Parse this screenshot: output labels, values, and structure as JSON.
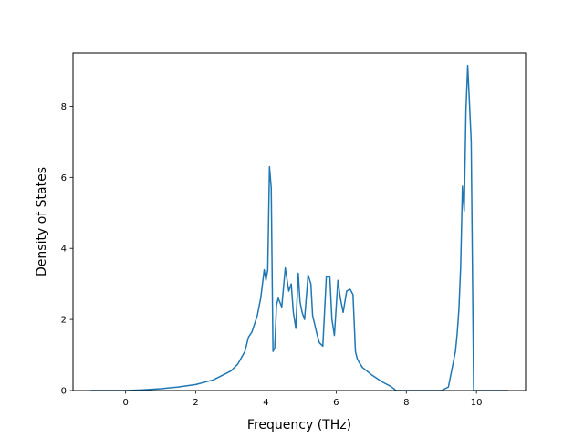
{
  "chart_data": {
    "type": "line",
    "title": "",
    "xlabel": "Frequency (THz)",
    "ylabel": "Density of States",
    "xlim": [
      -1.5,
      11.4
    ],
    "ylim": [
      0,
      9.5
    ],
    "xticks": [
      0,
      2,
      4,
      6,
      8,
      10
    ],
    "yticks": [
      0,
      2,
      4,
      6,
      8
    ],
    "xtick_labels": [
      "0",
      "2",
      "4",
      "6",
      "8",
      "10"
    ],
    "ytick_labels": [
      "0",
      "2",
      "4",
      "6",
      "8"
    ],
    "grid": false,
    "legend": "none",
    "line_color": "#1f77b4",
    "series": [
      {
        "x": [
          -1.0,
          -0.5,
          0.0,
          0.5,
          1.0,
          1.5,
          2.0,
          2.5,
          3.0,
          3.2,
          3.4,
          3.5,
          3.6,
          3.75,
          3.85,
          3.95,
          4.0,
          4.05,
          4.1,
          4.15,
          4.2,
          4.25,
          4.3,
          4.35,
          4.45,
          4.55,
          4.65,
          4.72,
          4.78,
          4.85,
          4.92,
          4.97,
          5.03,
          5.1,
          5.2,
          5.28,
          5.33,
          5.38,
          5.45,
          5.52,
          5.62,
          5.72,
          5.82,
          5.88,
          5.95,
          6.05,
          6.12,
          6.2,
          6.3,
          6.4,
          6.48,
          6.55,
          6.6,
          6.65,
          6.75,
          7.0,
          7.3,
          7.55,
          7.65,
          7.7,
          8.0,
          8.5,
          9.0,
          9.2,
          9.3,
          9.4,
          9.45,
          9.5,
          9.55,
          9.6,
          9.65,
          9.7,
          9.75,
          9.8,
          9.85,
          9.88,
          9.92,
          10.2,
          10.9
        ],
        "y": [
          0,
          0,
          0,
          0.02,
          0.05,
          0.1,
          0.17,
          0.3,
          0.55,
          0.75,
          1.1,
          1.5,
          1.65,
          2.1,
          2.6,
          3.4,
          3.1,
          3.4,
          6.3,
          5.7,
          1.1,
          1.2,
          2.4,
          2.6,
          2.35,
          3.45,
          2.8,
          3.0,
          2.2,
          1.75,
          3.3,
          2.5,
          2.2,
          2.0,
          3.25,
          3.0,
          2.1,
          1.9,
          1.6,
          1.35,
          1.25,
          3.2,
          3.2,
          2.0,
          1.55,
          3.1,
          2.6,
          2.2,
          2.8,
          2.85,
          2.7,
          1.1,
          0.9,
          0.8,
          0.65,
          0.45,
          0.25,
          0.12,
          0.05,
          0,
          0,
          0,
          0,
          0.1,
          0.6,
          1.1,
          1.6,
          2.3,
          3.5,
          5.75,
          5.05,
          7.9,
          9.15,
          8.1,
          7.0,
          4.0,
          0,
          0,
          0
        ]
      }
    ]
  }
}
